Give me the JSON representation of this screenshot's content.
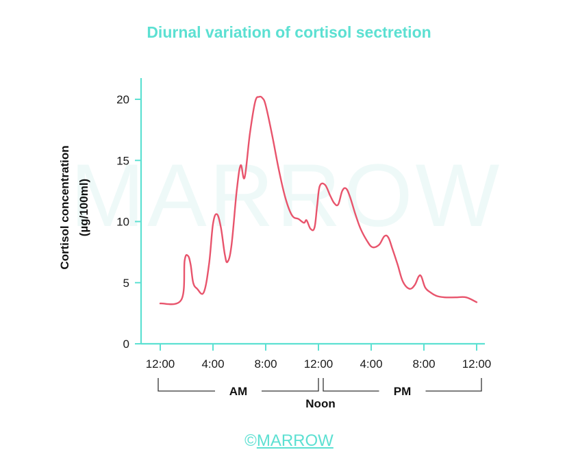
{
  "title": "Diurnal variation of cortisol sectretion",
  "watermark": "MARROW",
  "copyright": {
    "symbol": "©",
    "brand": "MARROW"
  },
  "colors": {
    "axis": "#5ce0d2",
    "line": "#e8546c",
    "title": "#5ce0d2"
  },
  "chart_data": {
    "type": "line",
    "title": "Diurnal variation of cortisol sectretion",
    "ylabel_line1": "Cortisol concentration",
    "ylabel_line2": "(µg/100ml)",
    "xlabel": "",
    "ylim": [
      0,
      21
    ],
    "xlim_hours": [
      0,
      24
    ],
    "y_ticks": [
      0,
      5,
      10,
      15,
      20
    ],
    "x_ticks": [
      {
        "h": 0,
        "label": "12:00"
      },
      {
        "h": 4,
        "label": "4:00"
      },
      {
        "h": 8,
        "label": "8:00"
      },
      {
        "h": 12,
        "label": "12:00"
      },
      {
        "h": 16,
        "label": "4:00"
      },
      {
        "h": 20,
        "label": "8:00"
      },
      {
        "h": 24,
        "label": "12:00"
      }
    ],
    "periods": [
      {
        "label": "AM",
        "from": 0,
        "to": 12
      },
      {
        "label": "PM",
        "from": 12,
        "to": 24
      }
    ],
    "noon_label": "Noon",
    "grid": false,
    "series": [
      {
        "x": [
          0,
          1.6,
          1.85,
          2.1,
          2.3,
          2.5,
          2.8,
          3.3,
          3.7,
          4.0,
          4.3,
          4.6,
          4.9,
          5.1,
          5.4,
          5.8,
          6.1,
          6.4,
          6.8,
          7.2,
          7.5,
          7.75,
          8.0,
          8.5,
          9.0,
          9.5,
          10.0,
          10.5,
          10.9,
          11.1,
          11.4,
          11.7,
          11.9,
          12.1,
          12.5,
          12.9,
          13.2,
          13.5,
          13.8,
          14.1,
          14.4,
          14.8,
          15.2,
          15.7,
          16.1,
          16.6,
          17.0,
          17.3,
          17.6,
          18.0,
          18.4,
          18.9,
          19.3,
          19.6,
          19.8,
          20.1,
          20.5,
          21.0,
          21.6,
          22.4,
          23.2,
          24.0
        ],
        "y": [
          3.3,
          3.6,
          6.8,
          7.2,
          6.5,
          5.0,
          4.5,
          4.2,
          6.5,
          9.8,
          10.6,
          9.5,
          7.3,
          6.7,
          8.0,
          12.5,
          14.6,
          13.6,
          17.2,
          19.8,
          20.2,
          20.1,
          19.5,
          17.0,
          14.2,
          11.9,
          10.5,
          10.2,
          9.9,
          10.1,
          9.4,
          9.5,
          11.3,
          12.9,
          13.0,
          12.1,
          11.5,
          11.4,
          12.5,
          12.7,
          12.0,
          10.6,
          9.4,
          8.4,
          7.9,
          8.1,
          8.8,
          8.7,
          7.8,
          6.5,
          5.1,
          4.5,
          4.8,
          5.5,
          5.5,
          4.6,
          4.2,
          3.9,
          3.8,
          3.8,
          3.8,
          3.4
        ]
      }
    ]
  }
}
